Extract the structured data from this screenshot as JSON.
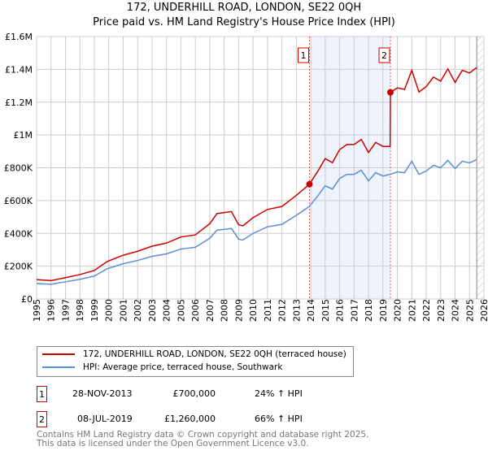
{
  "title": "172, UNDERHILL ROAD, LONDON, SE22 0QH",
  "subtitle": "Price paid vs. HM Land Registry's House Price Index (HPI)",
  "chart_data": {
    "type": "line",
    "title": "172, UNDERHILL ROAD, LONDON, SE22 0QH — Price paid vs. HM Land Registry's House Price Index (HPI)",
    "ylim": [
      0,
      1600000
    ],
    "xlim": [
      1995,
      2026
    ],
    "yticks": [
      0,
      200000,
      400000,
      600000,
      800000,
      1000000,
      1200000,
      1400000,
      1600000
    ],
    "ytick_labels": [
      "£0",
      "£200K",
      "£400K",
      "£600K",
      "£800K",
      "£1M",
      "£1.2M",
      "£1.4M",
      "£1.6M"
    ],
    "xticks": [
      "1995",
      "1996",
      "1997",
      "1998",
      "1999",
      "2000",
      "2001",
      "2002",
      "2003",
      "2004",
      "2005",
      "2006",
      "2007",
      "2008",
      "2009",
      "2010",
      "2011",
      "2012",
      "2013",
      "2014",
      "2015",
      "2016",
      "2017",
      "2018",
      "2019",
      "2020",
      "2021",
      "2022",
      "2023",
      "2024",
      "2025",
      "2026"
    ],
    "grid": true,
    "series": [
      {
        "name": "172, UNDERHILL ROAD, LONDON, SE22 0QH (terraced house)",
        "color": "#cc0000",
        "x": [
          1995,
          1996,
          1997,
          1998,
          1999,
          1999.9,
          2001,
          2002,
          2003,
          2004,
          2005,
          2006,
          2007,
          2007.5,
          2008,
          2008.5,
          2009,
          2009.3,
          2010,
          2011,
          2012,
          2013,
          2013.91,
          2014.5,
          2015,
          2015.5,
          2016,
          2016.5,
          2017,
          2017.5,
          2018,
          2018.5,
          2019,
          2019.5,
          2019.52,
          2020,
          2020.5,
          2021,
          2021.5,
          2022,
          2022.5,
          2023,
          2023.5,
          2024,
          2024.5,
          2025,
          2025.5
        ],
        "y": [
          118000,
          112000,
          130000,
          149000,
          174000,
          229000,
          267000,
          291000,
          322000,
          341000,
          378000,
          391000,
          459000,
          521000,
          527000,
          533000,
          453000,
          446000,
          496000,
          546000,
          564000,
          632000,
          700000,
          781000,
          856000,
          831000,
          911000,
          942000,
          942000,
          973000,
          893000,
          955000,
          930000,
          930000,
          1260000,
          1287000,
          1278000,
          1394000,
          1262000,
          1295000,
          1353000,
          1328000,
          1403000,
          1320000,
          1394000,
          1378000,
          1411000
        ]
      },
      {
        "name": "HPI: Average price, terraced house, Southwark",
        "color": "#5b8fd4",
        "x": [
          1995,
          1996,
          1997,
          1998,
          1999,
          1999.9,
          2001,
          2002,
          2003,
          2004,
          2005,
          2006,
          2007,
          2007.5,
          2008,
          2008.5,
          2009,
          2009.3,
          2010,
          2011,
          2012,
          2013,
          2013.91,
          2014.5,
          2015,
          2015.5,
          2016,
          2016.5,
          2017,
          2017.5,
          2018,
          2018.5,
          2019,
          2019.52,
          2020,
          2020.5,
          2021,
          2021.5,
          2022,
          2022.5,
          2023,
          2023.5,
          2024,
          2024.5,
          2025,
          2025.5
        ],
        "y": [
          95000,
          90000,
          105000,
          120000,
          140000,
          185000,
          215000,
          235000,
          260000,
          275000,
          305000,
          315000,
          370000,
          420000,
          425000,
          430000,
          365000,
          360000,
          400000,
          440000,
          455000,
          510000,
          565000,
          630000,
          690000,
          670000,
          735000,
          760000,
          760000,
          785000,
          720000,
          770000,
          750000,
          760000,
          775000,
          770000,
          840000,
          760000,
          780000,
          815000,
          800000,
          845000,
          795000,
          840000,
          830000,
          850000
        ]
      }
    ],
    "sales": [
      {
        "label": "1",
        "x": 2013.91,
        "y": 700000
      },
      {
        "label": "2",
        "x": 2019.52,
        "y": 1260000
      }
    ],
    "forecast_start": 2025.5,
    "legend": "bottom"
  },
  "legend": {
    "items": [
      {
        "label": "172, UNDERHILL ROAD, LONDON, SE22 0QH (terraced house)",
        "color": "#cc0000"
      },
      {
        "label": "HPI: Average price, terraced house, Southwark",
        "color": "#5b8fd4"
      }
    ]
  },
  "transactions": [
    {
      "num": "1",
      "date": "28-NOV-2013",
      "price": "£700,000",
      "hpi": "24% ↑ HPI"
    },
    {
      "num": "2",
      "date": "08-JUL-2019",
      "price": "£1,260,000",
      "hpi": "66% ↑ HPI"
    }
  ],
  "footer": {
    "line1": "Contains HM Land Registry data © Crown copyright and database right 2025.",
    "line2": "This data is licensed under the Open Government Licence v3.0."
  }
}
